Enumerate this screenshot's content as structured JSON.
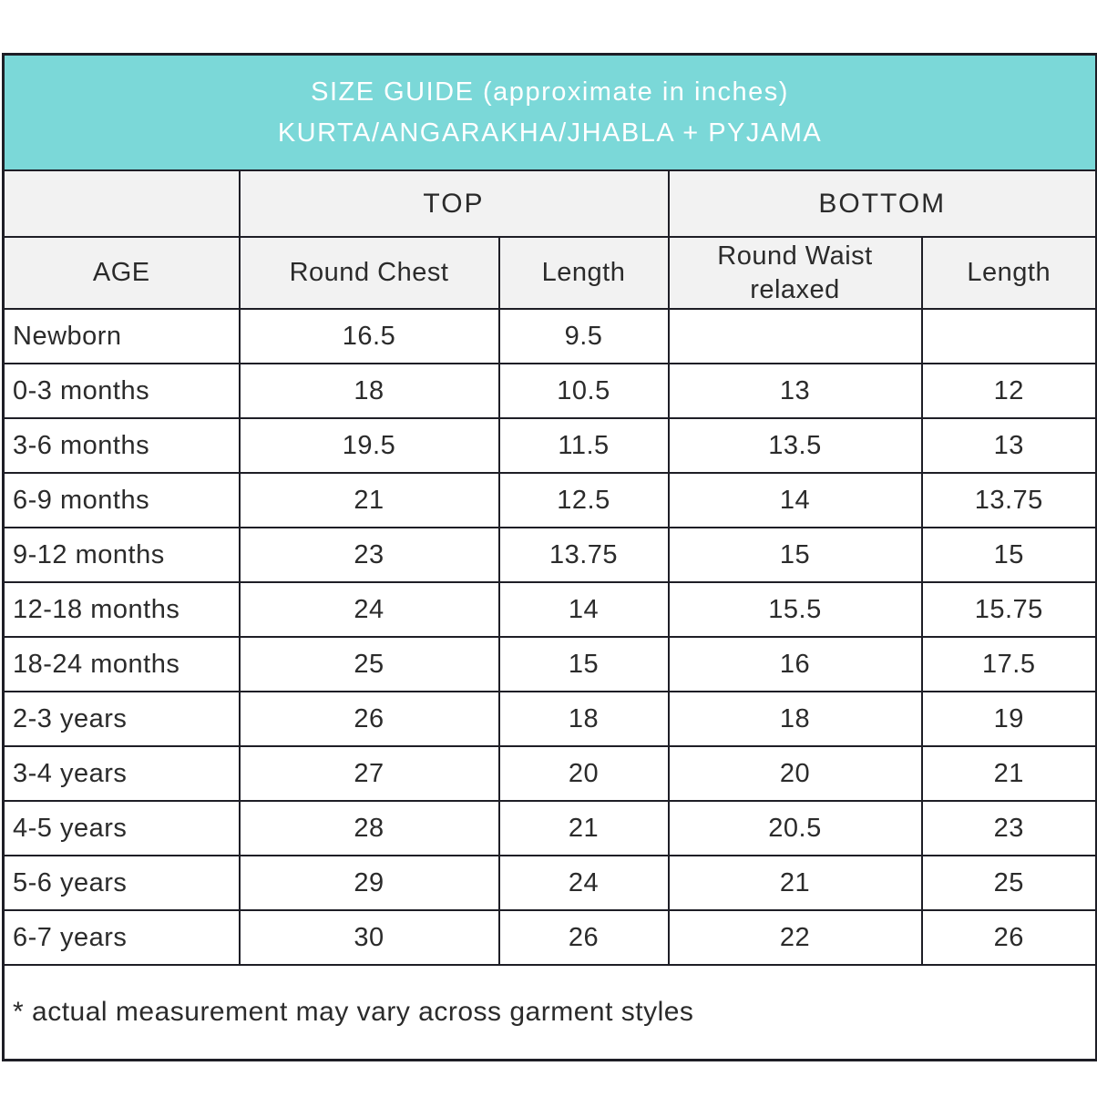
{
  "header": {
    "title_line1": "SIZE GUIDE (approximate in inches)",
    "title_line2": "KURTA/ANGARAKHA/JHABLA + PYJAMA"
  },
  "table": {
    "group_headers": {
      "top": "TOP",
      "bottom": "BOTTOM"
    },
    "column_headers": {
      "age": "AGE",
      "round_chest": "Round Chest",
      "top_length": "Length",
      "round_waist": "Round Waist relaxed",
      "bottom_length": "Length"
    },
    "rows": [
      {
        "age": "Newborn",
        "values": [
          "16.5",
          "9.5",
          "",
          ""
        ]
      },
      {
        "age": "0-3 months",
        "values": [
          "18",
          "10.5",
          "13",
          "12"
        ]
      },
      {
        "age": "3-6 months",
        "values": [
          "19.5",
          "11.5",
          "13.5",
          "13"
        ]
      },
      {
        "age": "6-9 months",
        "values": [
          "21",
          "12.5",
          "14",
          "13.75"
        ]
      },
      {
        "age": "9-12 months",
        "values": [
          "23",
          "13.75",
          "15",
          "15"
        ]
      },
      {
        "age": "12-18 months",
        "values": [
          "24",
          "14",
          "15.5",
          "15.75"
        ]
      },
      {
        "age": "18-24 months",
        "values": [
          "25",
          "15",
          "16",
          "17.5"
        ]
      },
      {
        "age": "2-3 years",
        "values": [
          "26",
          "18",
          "18",
          "19"
        ]
      },
      {
        "age": "3-4 years",
        "values": [
          "27",
          "20",
          "20",
          "21"
        ]
      },
      {
        "age": "4-5 years",
        "values": [
          "28",
          "21",
          "20.5",
          "23"
        ]
      },
      {
        "age": "5-6 years",
        "values": [
          "29",
          "24",
          "21",
          "25"
        ]
      },
      {
        "age": "6-7 years",
        "values": [
          "30",
          "26",
          "22",
          "26"
        ]
      }
    ],
    "footnote": "* actual measurement may vary across garment styles"
  },
  "colors": {
    "header_bg": "#7bd8d8",
    "header_text": "#ffffff",
    "subheader_bg": "#f2f2f2",
    "border": "#1e1e26",
    "body_text": "#2b2b2b"
  },
  "chart_data": {
    "type": "table",
    "title": "SIZE GUIDE (approximate in inches) KURTA/ANGARAKHA/JHABLA + PYJAMA",
    "column_groups": [
      "",
      "TOP",
      "TOP",
      "BOTTOM",
      "BOTTOM"
    ],
    "columns": [
      "AGE",
      "Round Chest",
      "Length",
      "Round Waist relaxed",
      "Length"
    ],
    "rows": [
      [
        "Newborn",
        16.5,
        9.5,
        null,
        null
      ],
      [
        "0-3 months",
        18,
        10.5,
        13,
        12
      ],
      [
        "3-6 months",
        19.5,
        11.5,
        13.5,
        13
      ],
      [
        "6-9 months",
        21,
        12.5,
        14,
        13.75
      ],
      [
        "9-12 months",
        23,
        13.75,
        15,
        15
      ],
      [
        "12-18 months",
        24,
        14,
        15.5,
        15.75
      ],
      [
        "18-24 months",
        25,
        15,
        16,
        17.5
      ],
      [
        "2-3 years",
        26,
        18,
        18,
        19
      ],
      [
        "3-4 years",
        27,
        20,
        20,
        21
      ],
      [
        "4-5 years",
        28,
        21,
        20.5,
        23
      ],
      [
        "5-6 years",
        29,
        24,
        21,
        25
      ],
      [
        "6-7 years",
        30,
        26,
        22,
        26
      ]
    ],
    "footnote": "* actual measurement may vary across garment styles"
  }
}
